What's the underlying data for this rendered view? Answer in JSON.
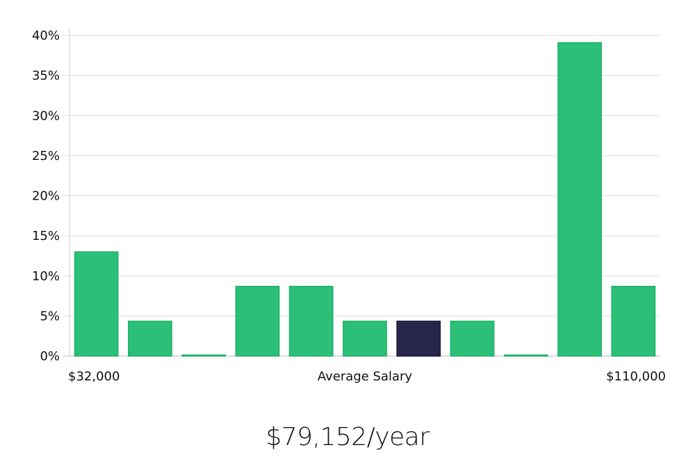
{
  "chart_data": {
    "type": "bar",
    "title": "",
    "xlabel": "Average Salary",
    "ylabel": "",
    "x_range_labels": {
      "min": "$32,000",
      "max": "$110,000"
    },
    "ylim": [
      0,
      40
    ],
    "yticks": [
      "0%",
      "5%",
      "10%",
      "15%",
      "20%",
      "25%",
      "30%",
      "35%",
      "40%"
    ],
    "ytick_values": [
      0,
      5,
      10,
      15,
      20,
      25,
      30,
      35,
      40
    ],
    "grid": true,
    "values": [
      13.0,
      4.35,
      0,
      8.7,
      8.7,
      4.35,
      4.35,
      4.35,
      0,
      39.1,
      8.7
    ],
    "highlight_index": 6,
    "colors": {
      "bar": "#2bbf77",
      "bar_edge": "#20b06a",
      "highlight": "#28254a",
      "grid": "#dddddd",
      "axis": "#cccccc"
    }
  },
  "summary": {
    "salary": "$79,152/year"
  }
}
